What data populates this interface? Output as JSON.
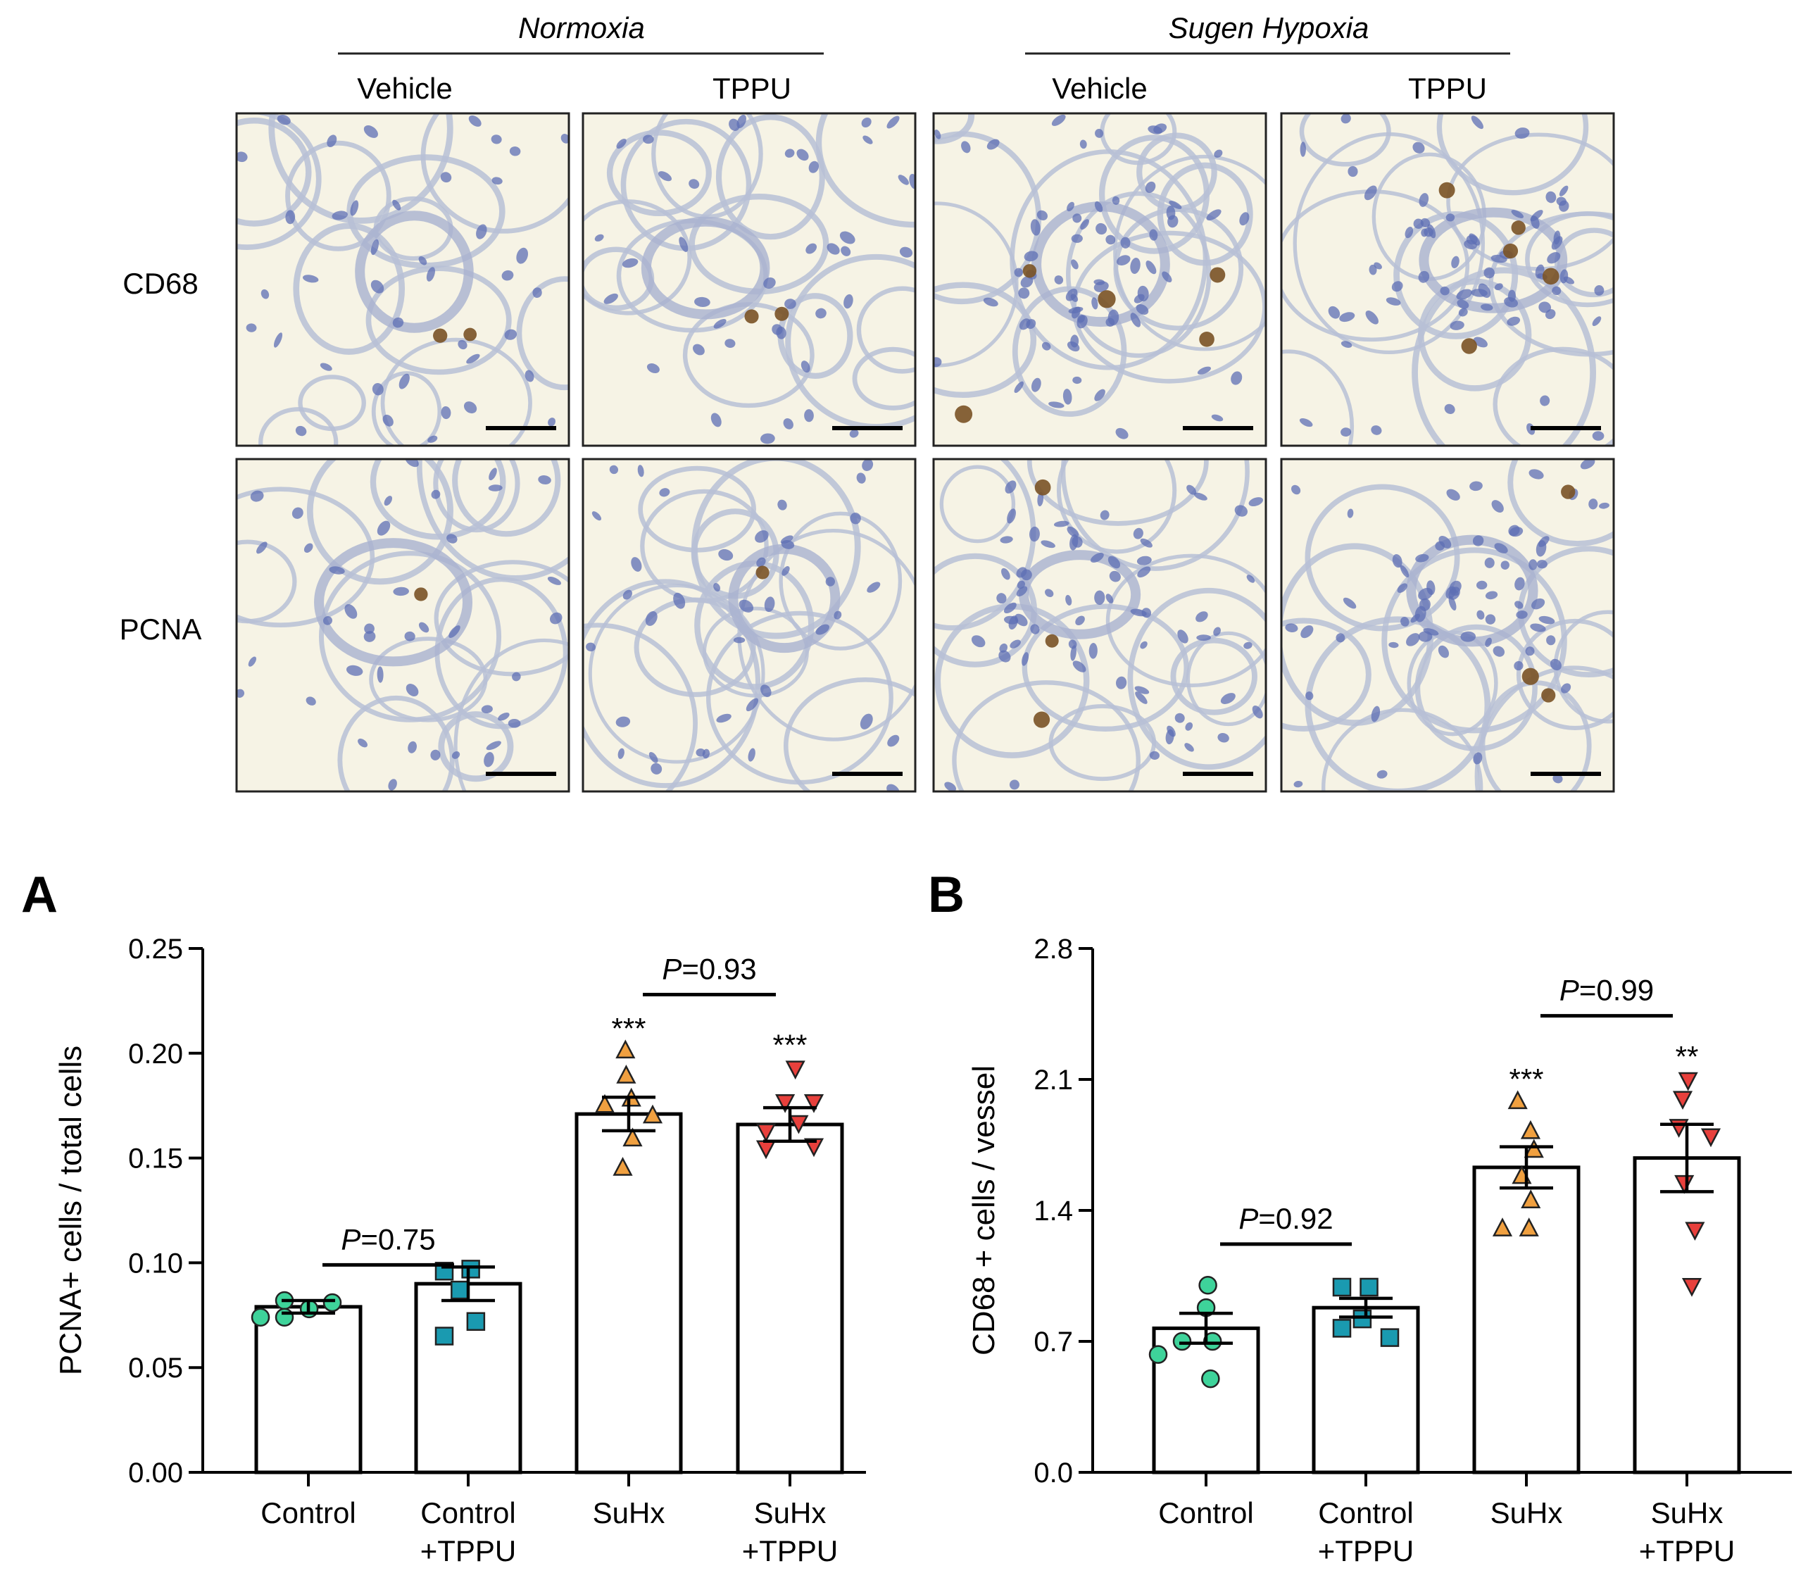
{
  "micrographs": {
    "conditions": [
      "Normoxia",
      "Sugen Hypoxia"
    ],
    "columns": [
      "Vehicle",
      "TPPU",
      "Vehicle",
      "TPPU"
    ],
    "rows": [
      "CD68",
      "PCNA"
    ],
    "stain_colors": {
      "background": "#f6f3e5",
      "nucleus": "#5d6fb4",
      "membrane": "#b7bfd6",
      "positive": "#7a5225"
    }
  },
  "chart_data": [
    {
      "panel_label": "A",
      "type": "bar",
      "title": "",
      "ylabel": "PCNA+ cells / total cells",
      "ylim": [
        0,
        0.25
      ],
      "yticks": [
        "0.00",
        "0.05",
        "0.10",
        "0.15",
        "0.20",
        "0.25"
      ],
      "categories": [
        [
          "Control"
        ],
        [
          "Control",
          "+TPPU"
        ],
        [
          "SuHx"
        ],
        [
          "SuHx",
          "+TPPU"
        ]
      ],
      "means": [
        0.079,
        0.09,
        0.171,
        0.166
      ],
      "sem": [
        0.003,
        0.008,
        0.008,
        0.008
      ],
      "points": [
        [
          0.078,
          0.082,
          0.081,
          0.074,
          0.074
        ],
        [
          0.097,
          0.096,
          0.087,
          0.072,
          0.065
        ],
        [
          0.201,
          0.189,
          0.178,
          0.175,
          0.17,
          0.159,
          0.145
        ],
        [
          0.193,
          0.177,
          0.177,
          0.167,
          0.163,
          0.156,
          0.155
        ]
      ],
      "markers": [
        "circle",
        "square",
        "triangle-up",
        "triangle-down"
      ],
      "marker_colors": [
        "#3ed39a",
        "#1a9ab0",
        "#f0a040",
        "#e8403c"
      ],
      "significance": [
        "",
        "",
        "***",
        "***"
      ],
      "comparisons": [
        {
          "from": 0,
          "to": 1,
          "y": 0.099,
          "p_letter": "P",
          "p_value": "=0.75"
        },
        {
          "from": 2,
          "to": 3,
          "y": 0.228,
          "p_letter": "P",
          "p_value": "=0.93"
        }
      ]
    },
    {
      "panel_label": "B",
      "type": "bar",
      "title": "",
      "ylabel": "CD68 + cells / vessel",
      "ylim": [
        0,
        2.8
      ],
      "yticks": [
        "0.0",
        "0.7",
        "1.4",
        "2.1",
        "2.8"
      ],
      "categories": [
        [
          "Control"
        ],
        [
          "Control",
          "+TPPU"
        ],
        [
          "SuHx"
        ],
        [
          "SuHx",
          "+TPPU"
        ]
      ],
      "means": [
        0.77,
        0.88,
        1.63,
        1.68
      ],
      "sem": [
        0.08,
        0.05,
        0.11,
        0.18
      ],
      "points": [
        [
          1.0,
          0.88,
          0.7,
          0.7,
          0.63,
          0.5
        ],
        [
          0.99,
          0.99,
          0.82,
          0.77,
          0.72
        ],
        [
          1.98,
          1.82,
          1.72,
          1.58,
          1.45,
          1.3,
          1.3
        ],
        [
          2.1,
          2.0,
          1.85,
          1.8,
          1.55,
          1.3,
          1.0
        ]
      ],
      "markers": [
        "circle",
        "square",
        "triangle-up",
        "triangle-down"
      ],
      "marker_colors": [
        "#3ed39a",
        "#1a9ab0",
        "#f0a040",
        "#e8403c"
      ],
      "significance": [
        "",
        "",
        "***",
        "**"
      ],
      "comparisons": [
        {
          "from": 0,
          "to": 1,
          "y": 1.22,
          "p_letter": "P",
          "p_value": "=0.92"
        },
        {
          "from": 2,
          "to": 3,
          "y": 2.44,
          "p_letter": "P",
          "p_value": "=0.99"
        }
      ]
    }
  ]
}
